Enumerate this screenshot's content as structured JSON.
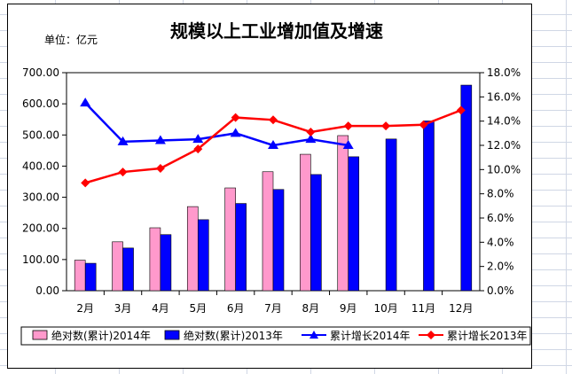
{
  "chart_data": {
    "type": "bar",
    "title": "规模以上工业增加值及增速",
    "unit_label": "单位：亿元",
    "categories": [
      "2月",
      "3月",
      "4月",
      "5月",
      "6月",
      "7月",
      "8月",
      "9月",
      "10月",
      "11月",
      "12月"
    ],
    "y_left": {
      "ticks": [
        "0.00",
        "100.00",
        "200.00",
        "300.00",
        "400.00",
        "500.00",
        "600.00",
        "700.00"
      ],
      "ylim": [
        0,
        700
      ]
    },
    "y_right": {
      "ticks": [
        "0.0%",
        "2.0%",
        "4.0%",
        "6.0%",
        "8.0%",
        "10.0%",
        "12.0%",
        "14.0%",
        "16.0%",
        "18.0%"
      ],
      "ylim": [
        0,
        18
      ]
    },
    "series": [
      {
        "name": "绝对数(累计)2014年",
        "kind": "bar",
        "axis": "left",
        "color": "#ff99cc",
        "values": [
          98,
          157,
          202,
          270,
          330,
          382,
          438,
          498,
          null,
          null,
          null
        ]
      },
      {
        "name": "绝对数(累计)2013年",
        "kind": "bar",
        "axis": "left",
        "color": "#0000ff",
        "values": [
          88,
          137,
          180,
          228,
          280,
          325,
          373,
          430,
          487,
          545,
          660
        ]
      },
      {
        "name": "累计增长2014年",
        "kind": "line",
        "axis": "right",
        "color": "#0000ff",
        "marker": "triangle",
        "values": [
          15.5,
          12.3,
          12.4,
          12.5,
          13.0,
          12.0,
          12.5,
          12.0,
          null,
          null,
          null
        ]
      },
      {
        "name": "累计增长2013年",
        "kind": "line",
        "axis": "right",
        "color": "#ff0000",
        "marker": "diamond",
        "values": [
          8.9,
          9.8,
          10.1,
          11.7,
          14.3,
          14.1,
          13.1,
          13.6,
          13.6,
          13.7,
          14.9
        ]
      }
    ],
    "grid": false,
    "legend_position": "bottom"
  }
}
